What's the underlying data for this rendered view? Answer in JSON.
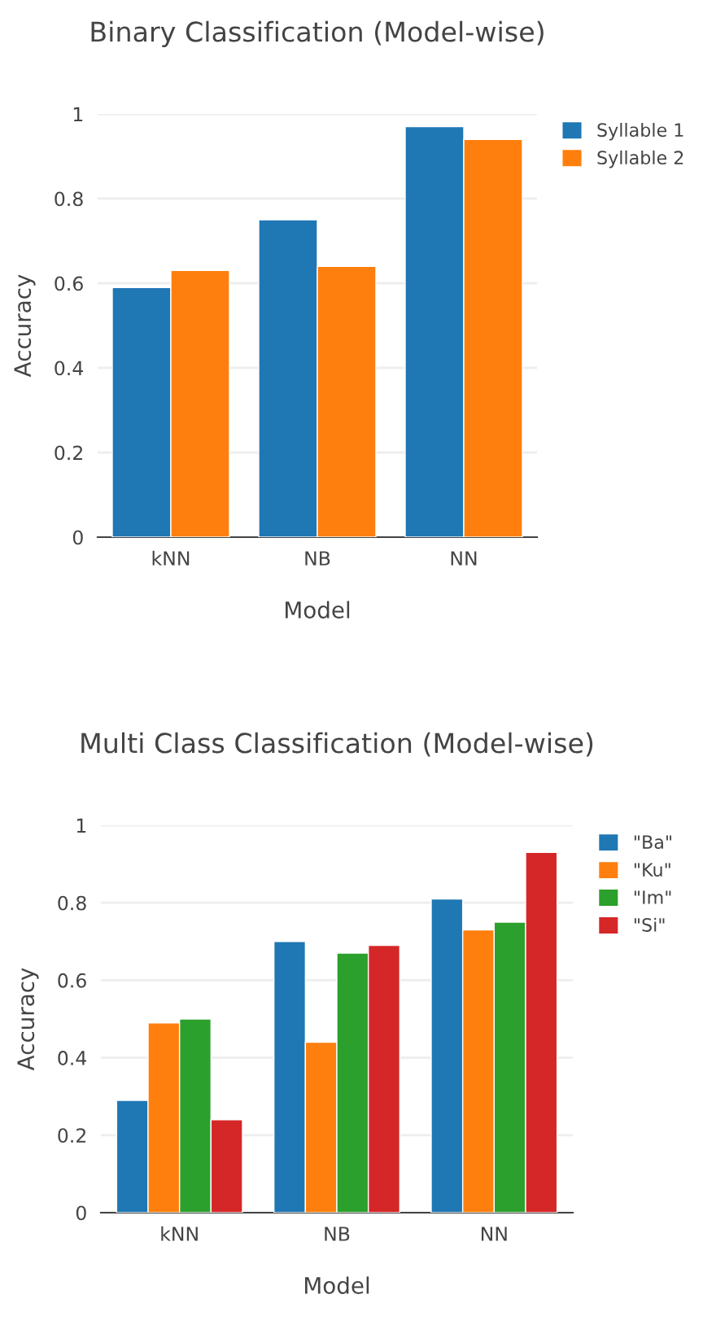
{
  "chart_data": [
    {
      "type": "bar",
      "title": "Binary Classification (Model-wise)",
      "xlabel": "Model",
      "ylabel": "Accuracy",
      "categories": [
        "kNN",
        "NB",
        "NN"
      ],
      "series": [
        {
          "name": "Syllable 1",
          "color": "#1f77b4",
          "values": [
            0.59,
            0.75,
            0.97
          ]
        },
        {
          "name": "Syllable 2",
          "color": "#ff7f0e",
          "values": [
            0.63,
            0.64,
            0.94
          ]
        }
      ],
      "ylim": [
        0,
        1
      ],
      "yticks": [
        0,
        0.2,
        0.4,
        0.6,
        0.8,
        1
      ],
      "grid": "y",
      "legend": "top right"
    },
    {
      "type": "bar",
      "title": "Multi Class Classification (Model-wise)",
      "xlabel": "Model",
      "ylabel": "Accuracy",
      "categories": [
        "kNN",
        "NB",
        "NN"
      ],
      "series": [
        {
          "name": "\"Ba\"",
          "color": "#1f77b4",
          "values": [
            0.29,
            0.7,
            0.81
          ]
        },
        {
          "name": "\"Ku\"",
          "color": "#ff7f0e",
          "values": [
            0.49,
            0.44,
            0.73
          ]
        },
        {
          "name": "\"Im\"",
          "color": "#2ca02c",
          "values": [
            0.5,
            0.67,
            0.75
          ]
        },
        {
          "name": "\"Si\"",
          "color": "#d62728",
          "values": [
            0.24,
            0.69,
            0.93
          ]
        }
      ],
      "ylim": [
        0,
        1
      ],
      "yticks": [
        0,
        0.2,
        0.4,
        0.6,
        0.8,
        1
      ],
      "grid": "y",
      "legend": "top right"
    }
  ]
}
